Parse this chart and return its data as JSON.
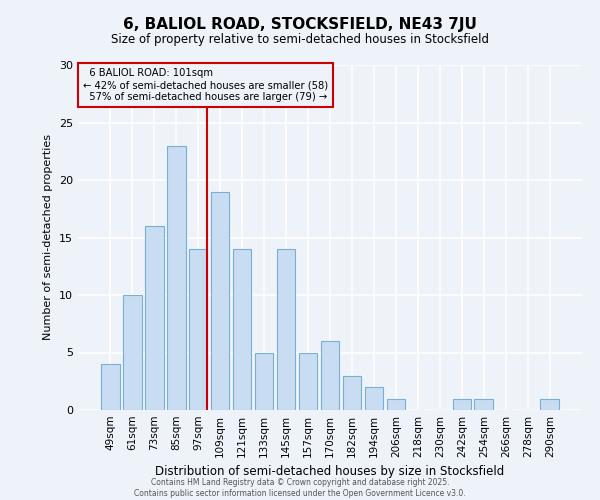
{
  "title": "6, BALIOL ROAD, STOCKSFIELD, NE43 7JU",
  "subtitle": "Size of property relative to semi-detached houses in Stocksfield",
  "xlabel": "Distribution of semi-detached houses by size in Stocksfield",
  "ylabel": "Number of semi-detached properties",
  "bar_labels": [
    "49sqm",
    "61sqm",
    "73sqm",
    "85sqm",
    "97sqm",
    "109sqm",
    "121sqm",
    "133sqm",
    "145sqm",
    "157sqm",
    "170sqm",
    "182sqm",
    "194sqm",
    "206sqm",
    "218sqm",
    "230sqm",
    "242sqm",
    "254sqm",
    "266sqm",
    "278sqm",
    "290sqm"
  ],
  "bar_values": [
    4,
    10,
    16,
    23,
    14,
    19,
    14,
    5,
    14,
    5,
    6,
    3,
    2,
    1,
    0,
    0,
    1,
    1,
    0,
    0,
    1
  ],
  "bar_color": "#c8ddf2",
  "bar_edge_color": "#7aafd4",
  "ylim": [
    0,
    30
  ],
  "yticks": [
    0,
    5,
    10,
    15,
    20,
    25,
    30
  ],
  "property_line_label": "6 BALIOL ROAD: 101sqm",
  "pct_smaller": 42,
  "pct_smaller_count": 58,
  "pct_larger": 57,
  "pct_larger_count": 79,
  "annotation_box_edge": "#cc0000",
  "vline_color": "#cc0000",
  "background_color": "#eef2f9",
  "grid_color": "#ffffff",
  "footer_line1": "Contains HM Land Registry data © Crown copyright and database right 2025.",
  "footer_line2": "Contains public sector information licensed under the Open Government Licence v3.0."
}
